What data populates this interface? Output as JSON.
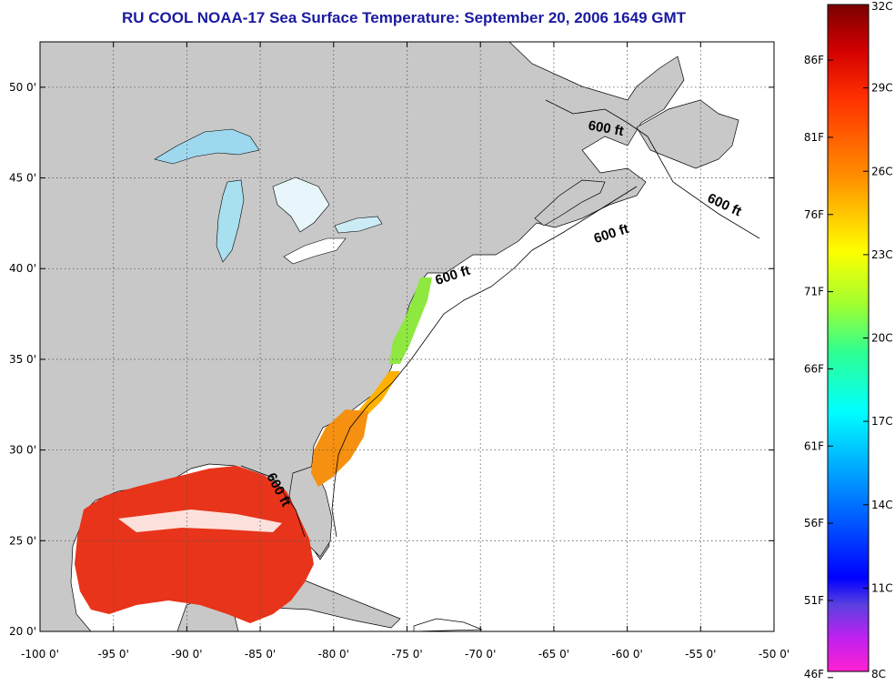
{
  "title": "RU COOL  NOAA-17  Sea Surface Temperature:  September 20, 2006 1649 GMT",
  "map": {
    "lon_ticks": [
      "-100 0'",
      "-95 0'",
      "-90 0'",
      "-85 0'",
      "-80 0'",
      "-75 0'",
      "-70 0'",
      "-65 0'",
      "-60 0'",
      "-55 0'",
      "-50 0'"
    ],
    "lat_ticks": [
      "50 0'",
      "45 0'",
      "40 0'",
      "35 0'",
      "30 0'",
      "25 0'",
      "20 0'"
    ],
    "lon_range": [
      -100,
      -50
    ],
    "lat_range": [
      20,
      52.5
    ],
    "contour_labels": [
      {
        "text": "600 ft",
        "lon": -61.5,
        "lat": 47.5,
        "angle": 10
      },
      {
        "text": "600 ft",
        "lon": -53.5,
        "lat": 43.3,
        "angle": 25
      },
      {
        "text": "600 ft",
        "lon": -61.0,
        "lat": 41.7,
        "angle": -18
      },
      {
        "text": "600 ft",
        "lon": -71.8,
        "lat": 39.4,
        "angle": -18
      },
      {
        "text": "600 ft",
        "lon": -84.0,
        "lat": 27.7,
        "angle": 62
      }
    ],
    "colors": {
      "land": "#c8c8c8",
      "ocean": "#ffffff",
      "grid": "#555555"
    }
  },
  "colorbar": {
    "celsius_labels": [
      "32C",
      "29C",
      "26C",
      "23C",
      "20C",
      "17C",
      "14C",
      "11C",
      "8C"
    ],
    "fahrenheit_labels": [
      "86F",
      "81F",
      "76F",
      "71F",
      "66F",
      "61F",
      "56F",
      "51F",
      "46F"
    ],
    "range_c": [
      8,
      32
    ]
  }
}
